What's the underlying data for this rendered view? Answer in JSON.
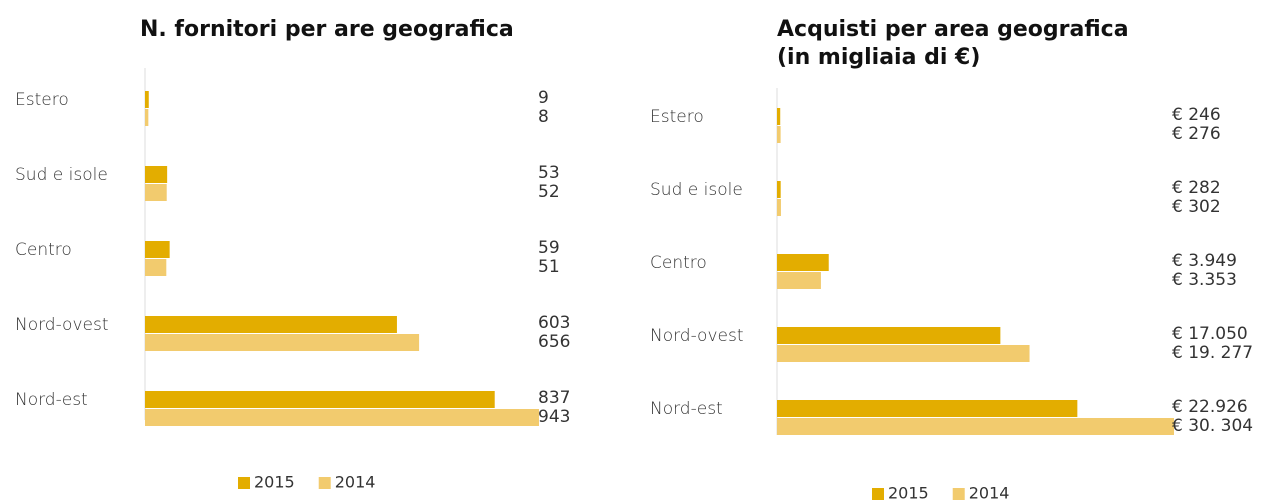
{
  "chart_data": [
    {
      "type": "bar",
      "orientation": "horizontal",
      "title": "N. fornitori per are geografica",
      "categories": [
        "Estero",
        "Sud e isole",
        "Centro",
        "Nord-ovest",
        "Nord-est"
      ],
      "series": [
        {
          "name": "2015",
          "color": "#e3ad00",
          "values": [
            9,
            53,
            59,
            603,
            837
          ]
        },
        {
          "name": "2014",
          "color": "#f2cb6e",
          "values": [
            8,
            52,
            51,
            656,
            943
          ]
        }
      ]
    },
    {
      "type": "bar",
      "orientation": "horizontal",
      "title": "Acquisti per area geografica",
      "subtitle": "(in migliaia di €)",
      "categories": [
        "Estero",
        "Sud e isole",
        "Centro",
        "Nord-ovest",
        "Nord-est"
      ],
      "series": [
        {
          "name": "2015",
          "color": "#e3ad00",
          "values": [
            246,
            282,
            3949,
            17050,
            22926
          ],
          "value_labels": [
            "€ 246",
            "€ 282",
            "€ 3.949",
            "€ 17.050",
            "€ 22.926"
          ]
        },
        {
          "name": "2014",
          "color": "#f2cb6e",
          "values": [
            276,
            302,
            3353,
            19277,
            30304
          ],
          "value_labels": [
            "€ 276",
            "€ 302",
            "€ 3.353",
            "€ 19. 277",
            "€ 30. 304"
          ]
        }
      ]
    }
  ]
}
